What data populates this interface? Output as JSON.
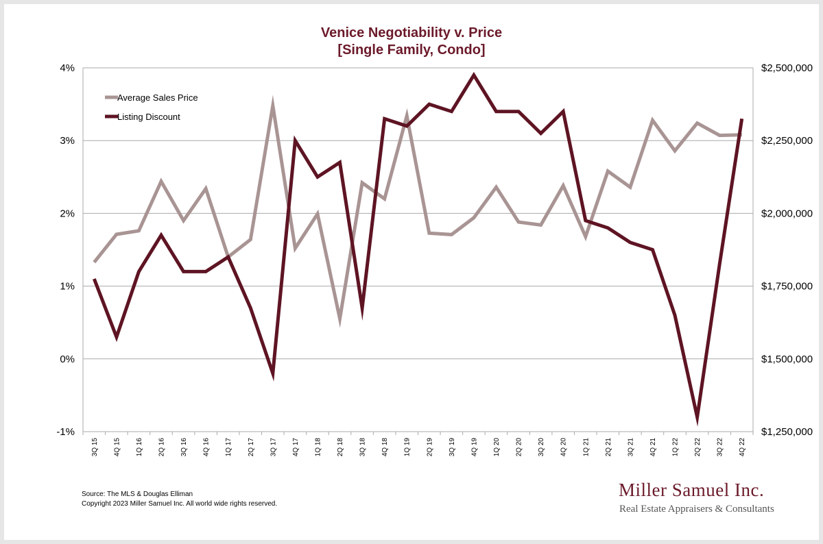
{
  "title": "Venice Negotiability v. Price",
  "subtitle": "[Single Family, Condo]",
  "source": "Source: The MLS & Douglas Elliman",
  "copyright": "Copyright 2023 Miller Samuel Inc.  All world wide rights reserved.",
  "brand": {
    "name": "Miller Samuel Inc.",
    "tagline": "Real Estate Appraisers & Consultants",
    "color": "#6b1a2a"
  },
  "chart_data": {
    "type": "line",
    "categories": [
      "3Q 15",
      "4Q 15",
      "1Q 16",
      "2Q 16",
      "3Q 16",
      "4Q 16",
      "1Q 17",
      "2Q 17",
      "3Q 17",
      "4Q 17",
      "1Q 18",
      "2Q 18",
      "3Q 18",
      "4Q 18",
      "1Q 19",
      "2Q 19",
      "3Q 19",
      "4Q 19",
      "1Q 20",
      "2Q 20",
      "3Q 20",
      "4Q 20",
      "1Q 21",
      "2Q 21",
      "3Q 21",
      "4Q 21",
      "1Q 22",
      "2Q 22",
      "3Q 22",
      "4Q 22"
    ],
    "series": [
      {
        "name": "Average Sales Price",
        "axis": "right",
        "color": "#a99494",
        "values": [
          1832000,
          1928000,
          1940000,
          2110000,
          1975000,
          2085000,
          1850000,
          1910000,
          2370000,
          1880000,
          1998000,
          1638000,
          2105000,
          2050000,
          2335000,
          1932000,
          1927000,
          1985000,
          2090000,
          1970000,
          1960000,
          2095000,
          1920000,
          2145000,
          2090000,
          2320000,
          2215000,
          2310000,
          2268000,
          2270000
        ]
      },
      {
        "name": "Listing Discount",
        "axis": "left",
        "color": "#5e1423",
        "values": [
          1.1,
          0.3,
          1.2,
          1.7,
          1.2,
          1.2,
          1.4,
          0.7,
          -0.2,
          3.0,
          2.5,
          2.7,
          0.7,
          3.3,
          3.2,
          3.5,
          3.4,
          3.9,
          3.4,
          3.4,
          3.1,
          3.4,
          1.9,
          1.8,
          1.6,
          1.5,
          0.6,
          -0.8,
          1.3,
          3.3
        ]
      }
    ],
    "y_left": {
      "ticks": [
        "4%",
        "3%",
        "2%",
        "1%",
        "0%",
        "-1%"
      ],
      "values": [
        4,
        3,
        2,
        1,
        0,
        -1
      ],
      "range": [
        -1,
        4
      ]
    },
    "y_right": {
      "ticks": [
        "$2,500,000",
        "$2,250,000",
        "$2,000,000",
        "$1,750,000",
        "$1,500,000",
        "$1,250,000"
      ],
      "values": [
        2500000,
        2250000,
        2000000,
        1750000,
        1500000,
        1250000
      ],
      "range": [
        1250000,
        2500000
      ]
    },
    "grid": true,
    "legend": "top-left",
    "gridColor": "#aaaaaa"
  }
}
